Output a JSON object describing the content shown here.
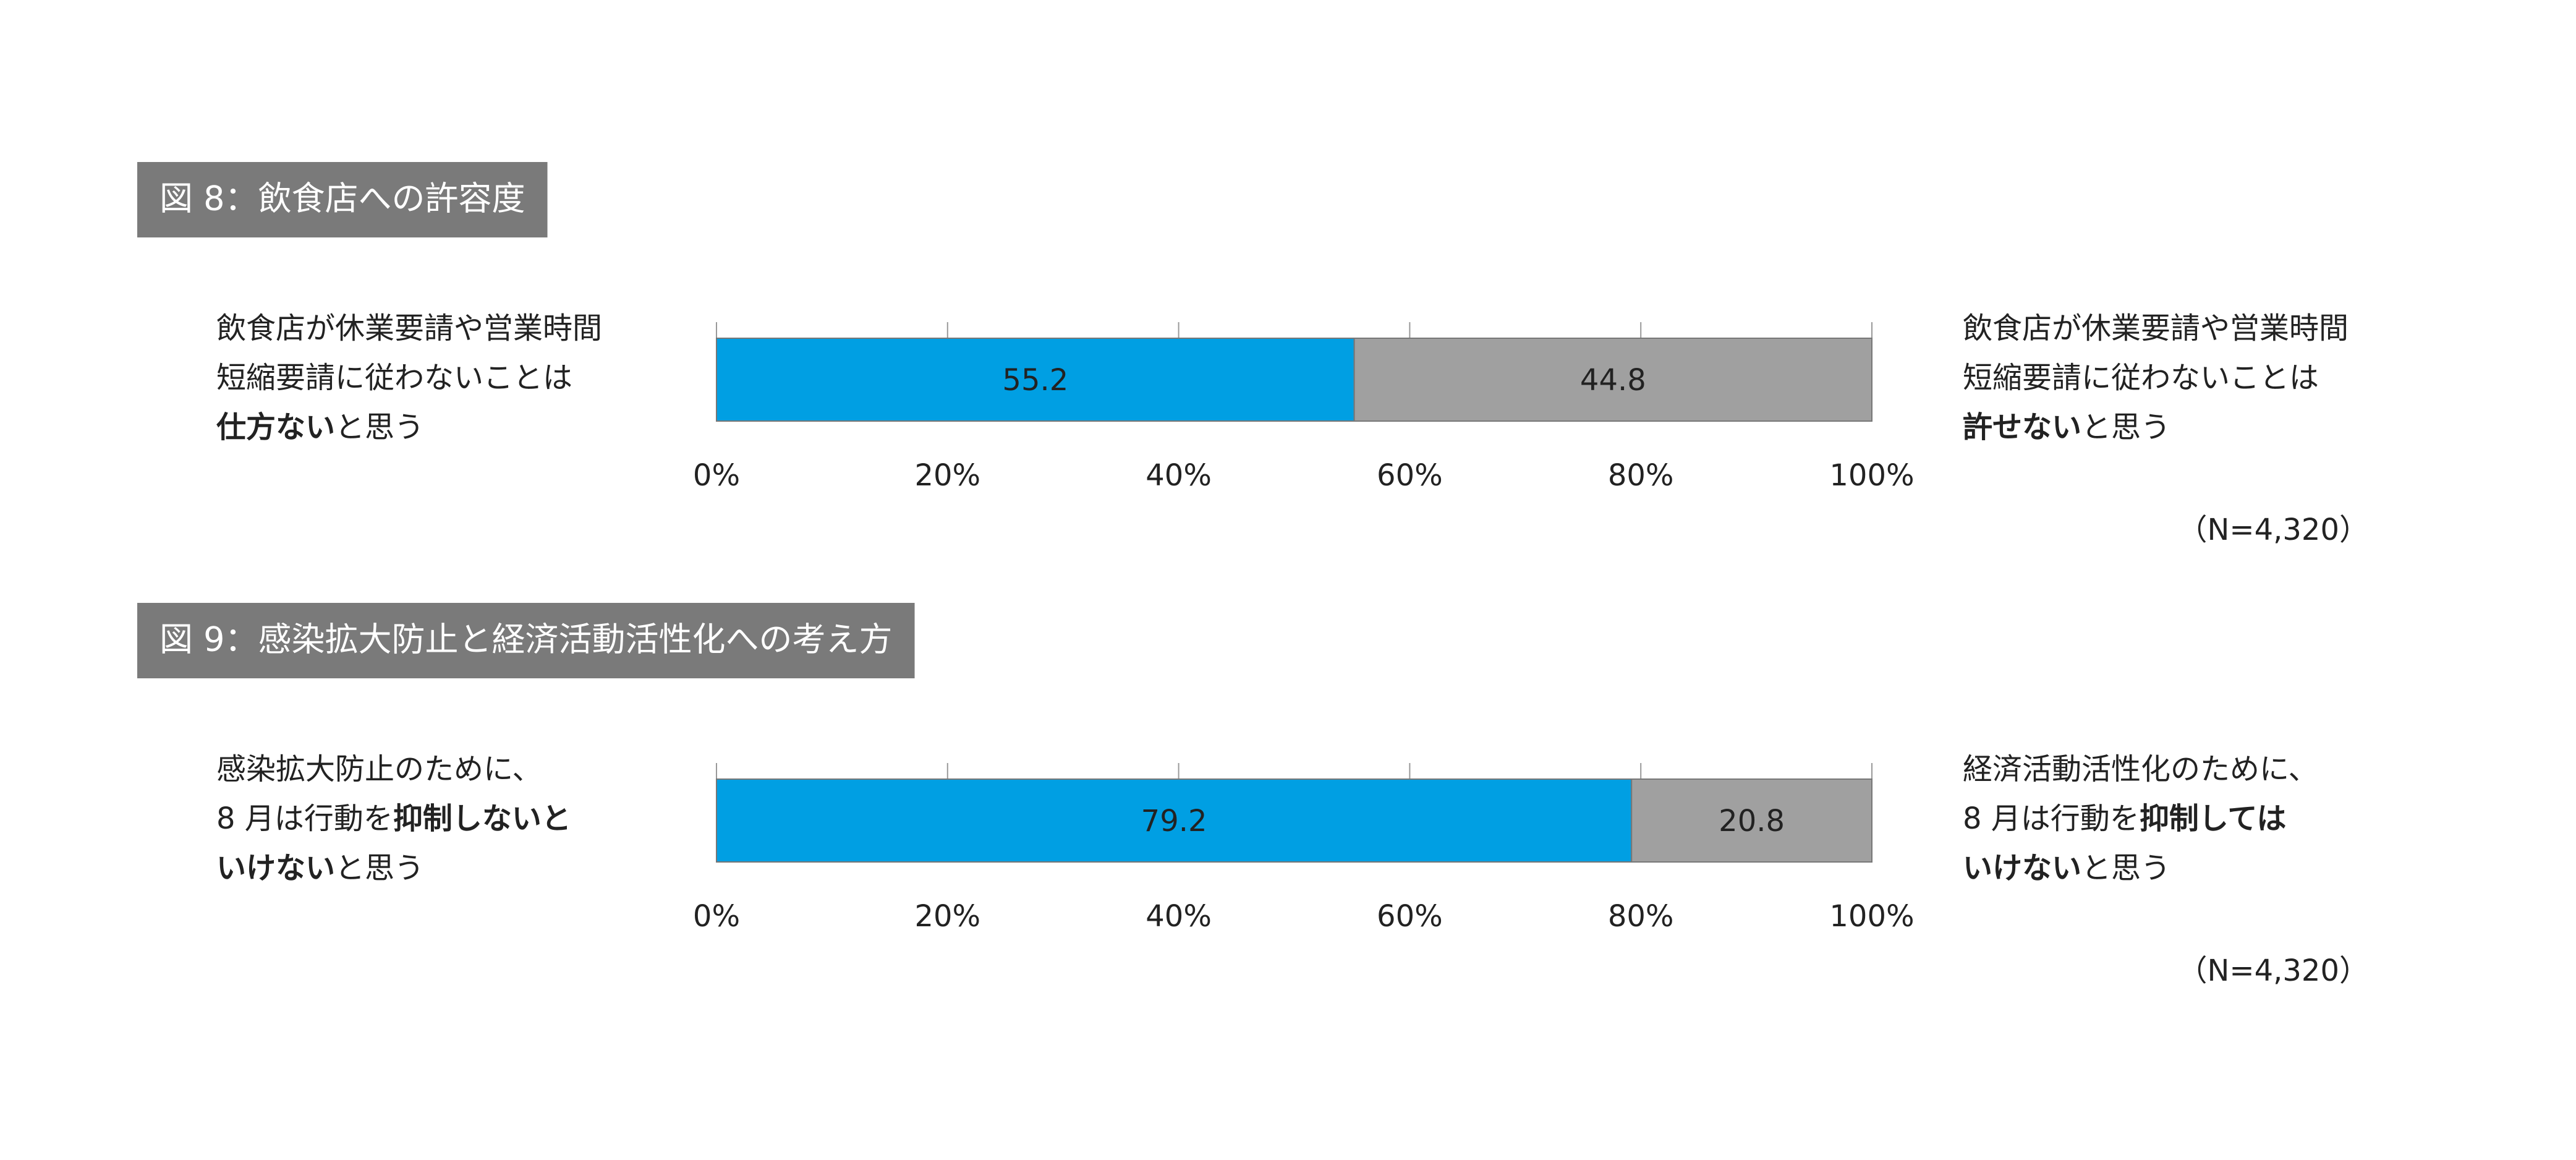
{
  "chart_data": [
    {
      "type": "stacked-bar",
      "title": "図 8：飲食店への許容度",
      "left_label": [
        [
          {
            "text": "飲食店が休業要請や営業時間",
            "bold": false
          }
        ],
        [
          {
            "text": "短縮要請に従わないことは",
            "bold": false
          }
        ],
        [
          {
            "text": "仕方ない",
            "bold": true
          },
          {
            "text": "と思う",
            "bold": false
          }
        ]
      ],
      "right_label": [
        [
          {
            "text": "飲食店が休業要請や営業時間",
            "bold": false
          }
        ],
        [
          {
            "text": "短縮要請に従わないことは",
            "bold": false
          }
        ],
        [
          {
            "text": "許せない",
            "bold": true
          },
          {
            "text": "と思う",
            "bold": false
          }
        ]
      ],
      "series": [
        {
          "color": "#009fe3",
          "values": [
            55.2
          ]
        },
        {
          "color": "#a0a0a0",
          "values": [
            44.8
          ]
        }
      ],
      "xlim": [
        0,
        100
      ],
      "xticks": [
        {
          "value": 0,
          "label": "0%"
        },
        {
          "value": 20,
          "label": "20%"
        },
        {
          "value": 40,
          "label": "40%"
        },
        {
          "value": 60,
          "label": "60%"
        },
        {
          "value": 80,
          "label": "80%"
        },
        {
          "value": 100,
          "label": "100%"
        }
      ],
      "note": "（N=4,320）"
    },
    {
      "type": "stacked-bar",
      "title": "図 9：感染拡大防止と経済活動活性化への考え方",
      "left_label": [
        [
          {
            "text": "感染拡大防止のために、",
            "bold": false
          }
        ],
        [
          {
            "text": "8 月は行動を",
            "bold": false
          },
          {
            "text": "抑制しないと",
            "bold": true
          }
        ],
        [
          {
            "text": "いけない",
            "bold": true
          },
          {
            "text": "と思う",
            "bold": false
          }
        ]
      ],
      "right_label": [
        [
          {
            "text": "経済活動活性化のために、",
            "bold": false
          }
        ],
        [
          {
            "text": "8 月は行動を",
            "bold": false
          },
          {
            "text": "抑制しては",
            "bold": true
          }
        ],
        [
          {
            "text": "いけない",
            "bold": true
          },
          {
            "text": "と思う",
            "bold": false
          }
        ]
      ],
      "series": [
        {
          "color": "#009fe3",
          "values": [
            79.2
          ]
        },
        {
          "color": "#a0a0a0",
          "values": [
            20.8
          ]
        }
      ],
      "xlim": [
        0,
        100
      ],
      "xticks": [
        {
          "value": 0,
          "label": "0%"
        },
        {
          "value": 20,
          "label": "20%"
        },
        {
          "value": 40,
          "label": "40%"
        },
        {
          "value": 60,
          "label": "60%"
        },
        {
          "value": 80,
          "label": "80%"
        },
        {
          "value": 100,
          "label": "100%"
        }
      ],
      "note": "（N=4,320）"
    }
  ]
}
